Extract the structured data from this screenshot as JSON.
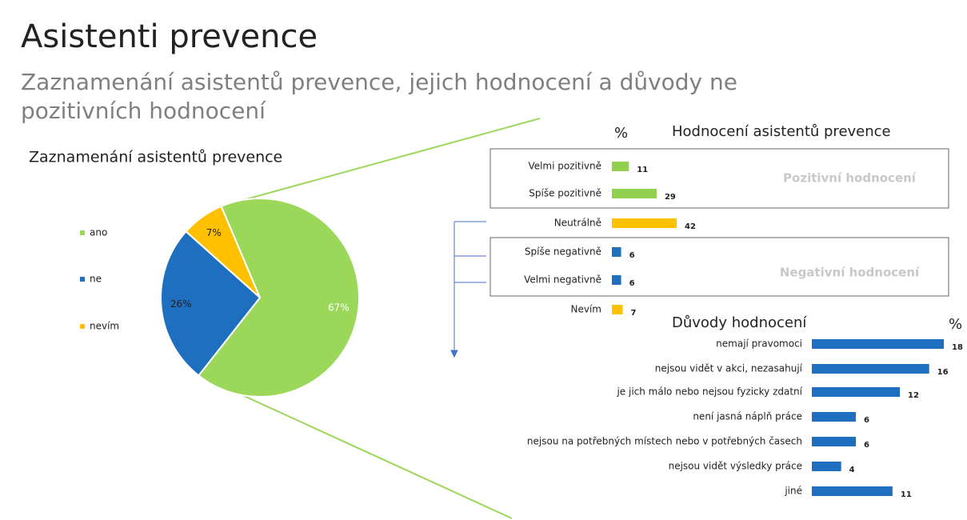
{
  "title": "Asistenti prevence",
  "subtitle": [
    "Zaznamenání asistentů prevence, jejich hodnocení a důvody ne",
    "pozitivních hodnocení"
  ],
  "chart_data": [
    {
      "type": "pie",
      "title": "Zaznamenání asistentů prevence",
      "categories": [
        "ano",
        "ne",
        "nevím"
      ],
      "values": [
        67,
        26,
        7
      ],
      "value_labels": [
        "67%",
        "26%",
        "7%"
      ],
      "colors": [
        "#9bd85a",
        "#1f6fc0",
        "#ffc000"
      ],
      "legend": "left"
    },
    {
      "type": "bar",
      "title": "Hodnocení asistentů prevence",
      "unit_label": "%",
      "categories": [
        "Velmi pozitivně",
        "Spíše pozitivně",
        "Neutrálně",
        "Spíše negativně",
        "Velmi negativně",
        "Nevím"
      ],
      "values": [
        11,
        29,
        42,
        6,
        6,
        7
      ],
      "colors": [
        "#92d050",
        "#92d050",
        "#ffc000",
        "#1f6fc0",
        "#1f6fc0",
        "#ffc000"
      ],
      "groups": [
        "Pozitivní hodnocení",
        "Negativní hodnocení"
      ]
    },
    {
      "type": "bar",
      "title": "Důvody hodnocení",
      "unit_label": "%",
      "categories": [
        "nemají pravomoci",
        "nejsou vidět v akci, nezasahují",
        "je jich málo nebo nejsou fyzicky zdatní",
        "není jasná náplň práce",
        "nejsou na potřebných místech nebo v potřebných časech",
        "nejsou vidět výsledky práce",
        "jiné"
      ],
      "values": [
        18,
        16,
        12,
        6,
        6,
        4,
        11
      ],
      "color": "#1f6fc0"
    }
  ]
}
